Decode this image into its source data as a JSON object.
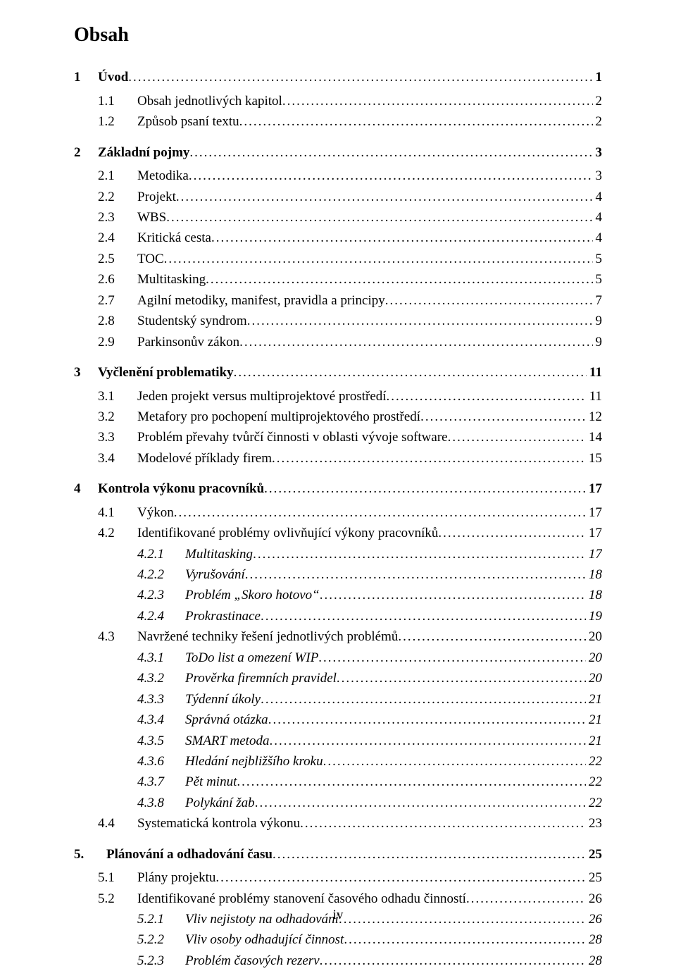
{
  "title": "Obsah",
  "footer": "iv",
  "entries": [
    {
      "level": 0,
      "num": "1",
      "label": "Úvod",
      "page": "1"
    },
    {
      "level": 1,
      "num": "1.1",
      "label": "Obsah jednotlivých kapitol",
      "page": "2"
    },
    {
      "level": 1,
      "num": "1.2",
      "label": "Způsob psaní textu",
      "page": "2"
    },
    {
      "level": 0,
      "num": "2",
      "label": "Základní pojmy",
      "page": "3"
    },
    {
      "level": 1,
      "num": "2.1",
      "label": "Metodika",
      "page": "3"
    },
    {
      "level": 1,
      "num": "2.2",
      "label": "Projekt",
      "page": "4"
    },
    {
      "level": 1,
      "num": "2.3",
      "label": "WBS",
      "page": "4"
    },
    {
      "level": 1,
      "num": "2.4",
      "label": "Kritická cesta",
      "page": "4"
    },
    {
      "level": 1,
      "num": "2.5",
      "label": "TOC",
      "page": "5"
    },
    {
      "level": 1,
      "num": "2.6",
      "label": "Multitasking",
      "page": "5"
    },
    {
      "level": 1,
      "num": "2.7",
      "label": "Agilní metodiky, manifest, pravidla a principy",
      "page": "7"
    },
    {
      "level": 1,
      "num": "2.8",
      "label": "Studentský syndrom",
      "page": "9"
    },
    {
      "level": 1,
      "num": "2.9",
      "label": "Parkinsonův zákon",
      "page": "9"
    },
    {
      "level": 0,
      "num": "3",
      "label": "Vyčlenění problematiky",
      "page": "11"
    },
    {
      "level": 1,
      "num": "3.1",
      "label": "Jeden projekt versus multiprojektové prostředí",
      "page": "11"
    },
    {
      "level": 1,
      "num": "3.2",
      "label": "Metafory pro pochopení multiprojektového prostředí",
      "page": "12"
    },
    {
      "level": 1,
      "num": "3.3",
      "label": "Problém převahy tvůrčí činnosti v oblasti vývoje software",
      "page": "14"
    },
    {
      "level": 1,
      "num": "3.4",
      "label": "Modelové příklady firem",
      "page": "15"
    },
    {
      "level": 0,
      "num": "4",
      "label": "Kontrola výkonu pracovníků",
      "page": "17"
    },
    {
      "level": 1,
      "num": "4.1",
      "label": "Výkon",
      "page": "17"
    },
    {
      "level": 1,
      "num": "4.2",
      "label": "Identifikované problémy ovlivňující výkony pracovníků",
      "page": "17"
    },
    {
      "level": 2,
      "num": "4.2.1",
      "label": "Multitasking",
      "page": "17"
    },
    {
      "level": 2,
      "num": "4.2.2",
      "label": "Vyrušování",
      "page": "18"
    },
    {
      "level": 2,
      "num": "4.2.3",
      "label": "Problém „Skoro hotovo“",
      "page": "18"
    },
    {
      "level": 2,
      "num": "4.2.4",
      "label": "Prokrastinace",
      "page": "19"
    },
    {
      "level": 1,
      "num": "4.3",
      "label": "Navržené techniky řešení jednotlivých problémů",
      "page": "20"
    },
    {
      "level": 2,
      "num": "4.3.1",
      "label": "ToDo list a omezení WIP",
      "page": "20"
    },
    {
      "level": 2,
      "num": "4.3.2",
      "label": "Prověrka firemních pravidel",
      "page": "20"
    },
    {
      "level": 2,
      "num": "4.3.3",
      "label": "Týdenní úkoly",
      "page": "21"
    },
    {
      "level": 2,
      "num": "4.3.4",
      "label": "Správná otázka",
      "page": "21"
    },
    {
      "level": 2,
      "num": "4.3.5",
      "label": "SMART metoda",
      "page": "21"
    },
    {
      "level": 2,
      "num": "4.3.6",
      "label": "Hledání nejbližšího kroku",
      "page": "22"
    },
    {
      "level": 2,
      "num": "4.3.7",
      "label": "Pět minut",
      "page": "22"
    },
    {
      "level": 2,
      "num": "4.3.8",
      "label": "Polykání žab",
      "page": "22"
    },
    {
      "level": 1,
      "num": "4.4",
      "label": "Systematická kontrola výkonu",
      "page": "23"
    },
    {
      "level": "0alt",
      "num": "5.",
      "label": "Plánování a odhadování času",
      "page": "25"
    },
    {
      "level": 1,
      "num": "5.1",
      "label": "Plány projektu",
      "page": "25"
    },
    {
      "level": 1,
      "num": "5.2",
      "label": "Identifikované problémy stanovení časového odhadu činností",
      "page": "26"
    },
    {
      "level": 2,
      "num": "5.2.1",
      "label": "Vliv nejistoty na odhadování",
      "page": "26"
    },
    {
      "level": 2,
      "num": "5.2.2",
      "label": "Vliv osoby odhadující činnost",
      "page": "28"
    },
    {
      "level": 2,
      "num": "5.2.3",
      "label": "Problém časových rezerv",
      "page": "28"
    }
  ]
}
